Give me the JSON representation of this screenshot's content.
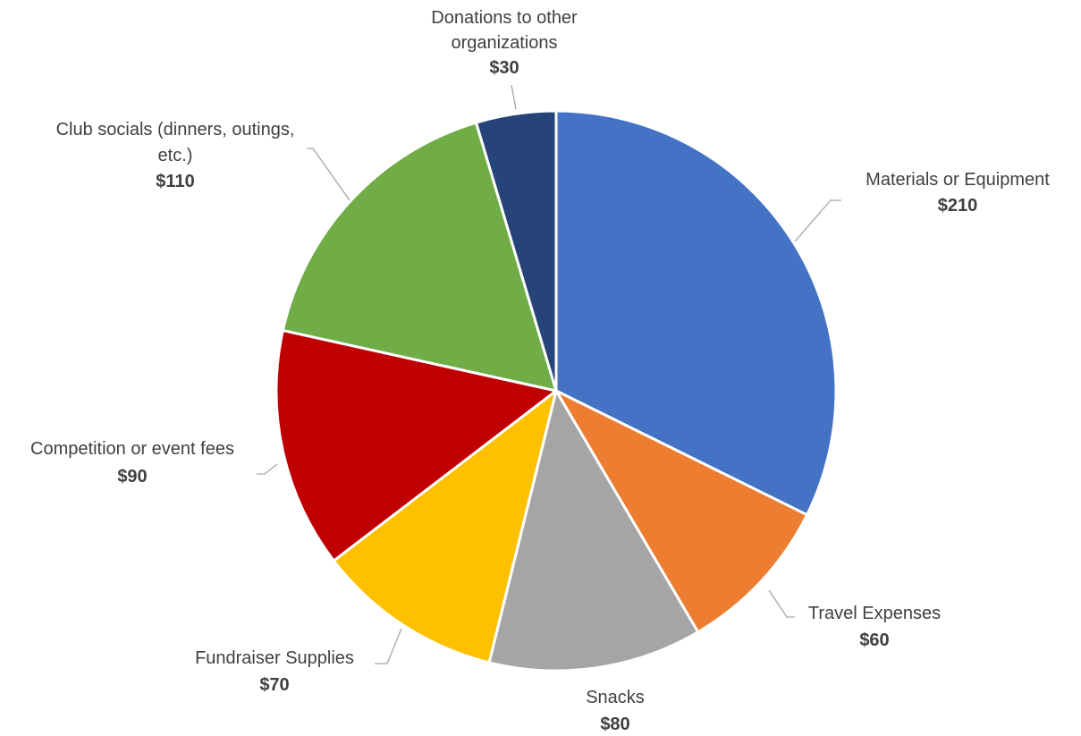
{
  "chart_data": {
    "type": "pie",
    "title": "",
    "start_angle_deg": 0,
    "direction": "clockwise",
    "categories": [
      "Materials or Equipment",
      "Travel Expenses",
      "Snacks",
      "Fundraiser Supplies",
      "Competition or event fees",
      "Club socials (dinners, outings, etc.)",
      "Donations to other organizations"
    ],
    "values": [
      210,
      60,
      80,
      70,
      90,
      110,
      30
    ],
    "value_labels": [
      "$210",
      "$60",
      "$80",
      "$70",
      "$90",
      "$110",
      "$30"
    ],
    "colors": [
      "#4472C4",
      "#ED7D31",
      "#A5A5A5",
      "#FFC000",
      "#C00000",
      "#70AD47",
      "#264478"
    ],
    "legend": "none",
    "data_labels": "outside with leader lines"
  }
}
